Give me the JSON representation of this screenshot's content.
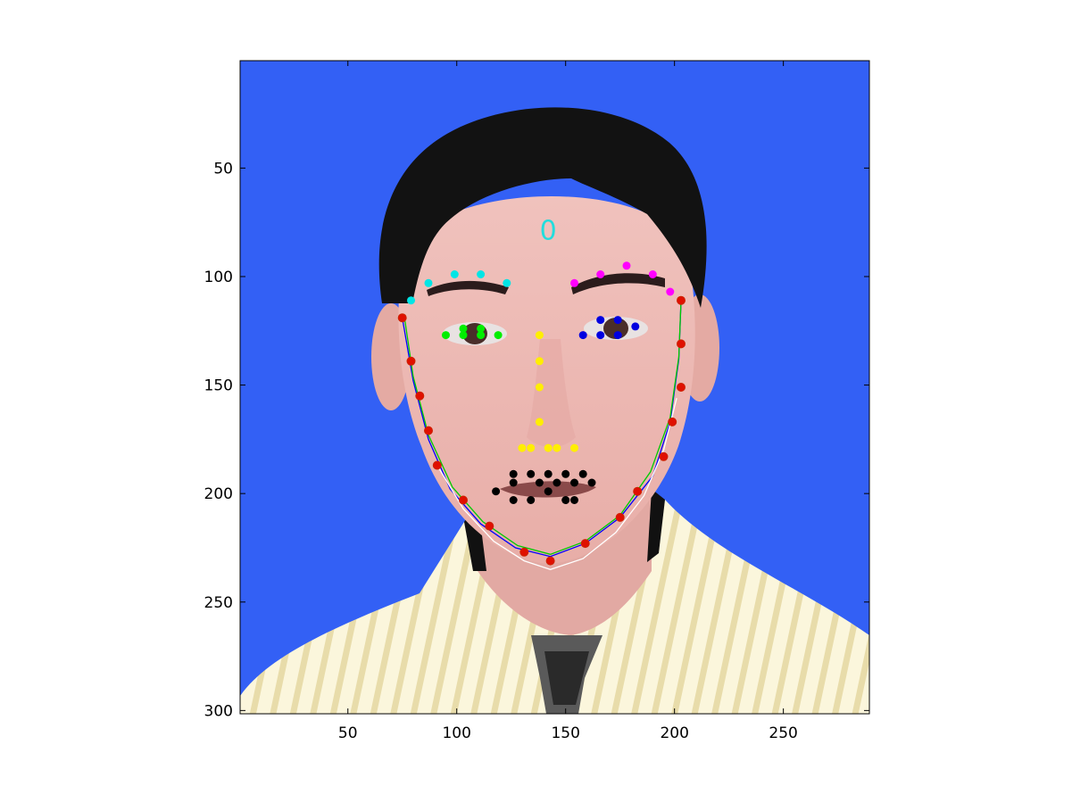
{
  "chart_data": {
    "type": "scatter",
    "title": "",
    "xlabel": "",
    "ylabel": "",
    "xlim": [
      1,
      289
    ],
    "ylim": [
      301,
      1
    ],
    "y_direction": "reversed",
    "grid": false,
    "background_image": "portrait-face-illustration",
    "x_ticks": [
      50,
      100,
      150,
      200,
      250
    ],
    "y_ticks": [
      50,
      100,
      150,
      200,
      250,
      300
    ],
    "x_tick_labels": [
      "50",
      "100",
      "150",
      "200",
      "250"
    ],
    "y_tick_labels": [
      "50",
      "100",
      "150",
      "200",
      "250",
      "300"
    ],
    "annotation": {
      "text": "0",
      "x": 142,
      "y": 78,
      "color": "#22dddd"
    },
    "series": [
      {
        "name": "left-eyebrow",
        "color": "#00e5e5",
        "points": [
          [
            79,
            111
          ],
          [
            87,
            103
          ],
          [
            99,
            99
          ],
          [
            111,
            99
          ],
          [
            123,
            103
          ]
        ]
      },
      {
        "name": "right-eyebrow",
        "color": "#ff00ff",
        "points": [
          [
            154,
            103
          ],
          [
            166,
            99
          ],
          [
            178,
            95
          ],
          [
            190,
            99
          ],
          [
            198,
            107
          ]
        ]
      },
      {
        "name": "left-eye",
        "color": "#00ee00",
        "points": [
          [
            95,
            127
          ],
          [
            103,
            124
          ],
          [
            111,
            124
          ],
          [
            119,
            127
          ],
          [
            111,
            127
          ],
          [
            103,
            127
          ]
        ]
      },
      {
        "name": "right-eye",
        "color": "#0000e0",
        "points": [
          [
            158,
            127
          ],
          [
            166,
            120
          ],
          [
            174,
            120
          ],
          [
            182,
            123
          ],
          [
            174,
            127
          ],
          [
            166,
            127
          ]
        ]
      },
      {
        "name": "nose",
        "color": "#ffee00",
        "points": [
          [
            138,
            127
          ],
          [
            138,
            139
          ],
          [
            138,
            151
          ],
          [
            138,
            167
          ],
          [
            130,
            179
          ],
          [
            134,
            179
          ],
          [
            142,
            179
          ],
          [
            146,
            179
          ],
          [
            154,
            179
          ]
        ]
      },
      {
        "name": "mouth",
        "color": "#000000",
        "points": [
          [
            118,
            199
          ],
          [
            126,
            191
          ],
          [
            134,
            191
          ],
          [
            142,
            191
          ],
          [
            150,
            191
          ],
          [
            158,
            191
          ],
          [
            162,
            195
          ],
          [
            154,
            195
          ],
          [
            146,
            195
          ],
          [
            142,
            199
          ],
          [
            138,
            195
          ],
          [
            126,
            195
          ],
          [
            126,
            203
          ],
          [
            134,
            203
          ],
          [
            150,
            203
          ],
          [
            154,
            203
          ]
        ]
      },
      {
        "name": "jaw-contour",
        "color": "#e01000",
        "points": [
          [
            75,
            119
          ],
          [
            79,
            139
          ],
          [
            83,
            155
          ],
          [
            87,
            171
          ],
          [
            91,
            187
          ],
          [
            103,
            203
          ],
          [
            115,
            215
          ],
          [
            131,
            227
          ],
          [
            143,
            231
          ],
          [
            159,
            223
          ],
          [
            175,
            211
          ],
          [
            183,
            199
          ],
          [
            195,
            183
          ],
          [
            199,
            167
          ],
          [
            203,
            151
          ],
          [
            203,
            131
          ],
          [
            203,
            111
          ]
        ]
      }
    ],
    "fitted_curves": [
      {
        "name": "blue-curve",
        "color": "#0000ff",
        "points": [
          [
            75,
            119
          ],
          [
            80,
            148
          ],
          [
            87,
            175
          ],
          [
            97,
            198
          ],
          [
            111,
            214
          ],
          [
            127,
            225
          ],
          [
            143,
            229
          ],
          [
            159,
            223
          ],
          [
            175,
            211
          ],
          [
            190,
            192
          ],
          [
            198,
            167
          ],
          [
            202,
            138
          ],
          [
            203,
            111
          ]
        ]
      },
      {
        "name": "green-curve",
        "color": "#00cc00",
        "points": [
          [
            76,
            119
          ],
          [
            80,
            146
          ],
          [
            87,
            173
          ],
          [
            98,
            197
          ],
          [
            112,
            213
          ],
          [
            128,
            224
          ],
          [
            143,
            228
          ],
          [
            159,
            222
          ],
          [
            175,
            210
          ],
          [
            189,
            190
          ],
          [
            198,
            165
          ],
          [
            202,
            137
          ],
          [
            203,
            111
          ]
        ]
      },
      {
        "name": "white-curve",
        "color": "#ffffff",
        "points": [
          [
            91,
            187
          ],
          [
            103,
            207
          ],
          [
            117,
            222
          ],
          [
            131,
            231
          ],
          [
            143,
            235
          ],
          [
            158,
            230
          ],
          [
            173,
            218
          ],
          [
            186,
            201
          ],
          [
            195,
            180
          ],
          [
            201,
            156
          ]
        ]
      }
    ]
  }
}
